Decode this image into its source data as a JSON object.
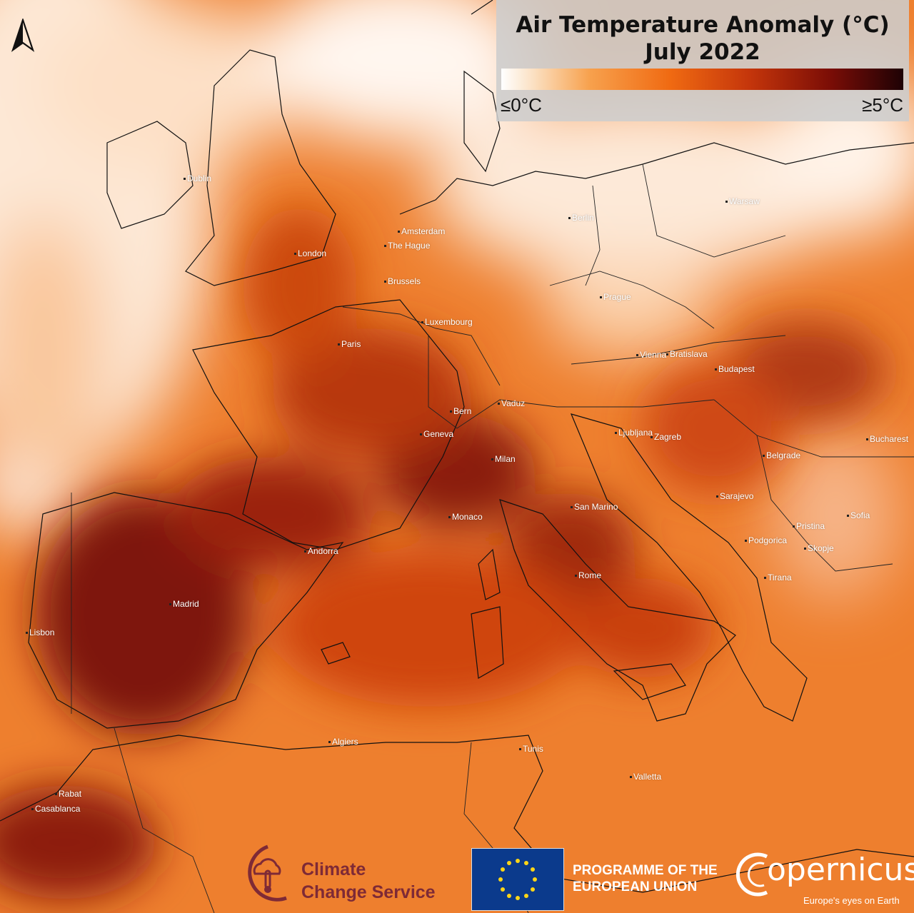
{
  "legend": {
    "title_line1": "Air Temperature Anomaly (°C)",
    "title_line2": "July 2022",
    "min_label": "≤0°C",
    "max_label": "≥5°C",
    "scale_min_c": 0,
    "scale_max_c": 5,
    "colors": [
      "#ffffff",
      "#f7a14d",
      "#f06a12",
      "#c4350b",
      "#7a0d06",
      "#1e0205"
    ]
  },
  "cities": [
    {
      "name": "Dublin"
    },
    {
      "name": "London"
    },
    {
      "name": "Amsterdam"
    },
    {
      "name": "The Hague"
    },
    {
      "name": "Brussels"
    },
    {
      "name": "Luxembourg"
    },
    {
      "name": "Paris"
    },
    {
      "name": "Berlin"
    },
    {
      "name": "Warsaw"
    },
    {
      "name": "Prague"
    },
    {
      "name": "Vienna"
    },
    {
      "name": "Bratislava"
    },
    {
      "name": "Budapest"
    },
    {
      "name": "Vaduz"
    },
    {
      "name": "Bern"
    },
    {
      "name": "Geneva"
    },
    {
      "name": "Milan"
    },
    {
      "name": "Ljubljana"
    },
    {
      "name": "Zagreb"
    },
    {
      "name": "Belgrade"
    },
    {
      "name": "Bucharest"
    },
    {
      "name": "Sarajevo"
    },
    {
      "name": "San Marino"
    },
    {
      "name": "Monaco"
    },
    {
      "name": "Andorra"
    },
    {
      "name": "Madrid"
    },
    {
      "name": "Lisbon"
    },
    {
      "name": "Rome"
    },
    {
      "name": "Pristina"
    },
    {
      "name": "Sofia"
    },
    {
      "name": "Podgorica"
    },
    {
      "name": "Skopje"
    },
    {
      "name": "Tirana"
    },
    {
      "name": "Algiers"
    },
    {
      "name": "Tunis"
    },
    {
      "name": "Valletta"
    },
    {
      "name": "Rabat"
    },
    {
      "name": "Casablanca"
    }
  ],
  "logos": {
    "c3s_line1": "Climate",
    "c3s_line2": "Change Service",
    "eu_line1": "PROGRAMME OF THE",
    "eu_line2": "EUROPEAN UNION",
    "copernicus_word": "opernicus",
    "copernicus_tagline": "Europe's eyes on Earth"
  },
  "colors": {
    "brand_c3s": "#7e2a36",
    "eu_blue": "#0b3a8c",
    "eu_star": "#ffd617"
  },
  "icons": {
    "north_arrow": "north-arrow-icon",
    "eu_flag": "eu-flag-icon",
    "c3s_logo": "c3s-logo-icon"
  }
}
